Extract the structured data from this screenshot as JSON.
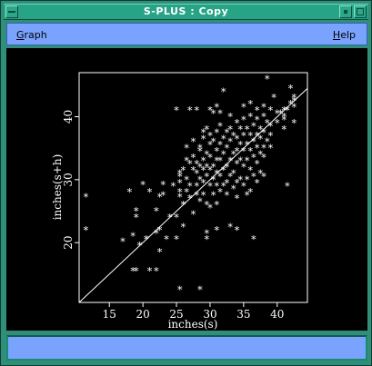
{
  "window": {
    "title": "S-PLUS : Copy"
  },
  "menu": {
    "graph_label": "Graph",
    "graph_underline": "G",
    "graph_rest": "raph",
    "help_label": "Help",
    "help_underline": "H",
    "help_rest": "elp"
  },
  "status": {
    "text": ""
  },
  "chart_data": {
    "type": "scatter",
    "xlabel": "inches(s)",
    "ylabel": "inches(s+h)",
    "xlim": [
      10.5,
      44.5
    ],
    "ylim": [
      10.5,
      47
    ],
    "xticks": [
      15,
      20,
      25,
      30,
      35,
      40
    ],
    "yticks": [
      20,
      30,
      40
    ],
    "marker": "*",
    "reference_line": {
      "from": [
        10.5,
        10.5
      ],
      "to": [
        44.5,
        44.5
      ]
    },
    "points": [
      [
        11.5,
        27.2
      ],
      [
        11.5,
        22.0
      ],
      [
        17.0,
        20.2
      ],
      [
        18.0,
        28.0
      ],
      [
        18.5,
        15.5
      ],
      [
        18.5,
        21.0
      ],
      [
        19.0,
        15.5
      ],
      [
        19.0,
        25.0
      ],
      [
        19.0,
        24.0
      ],
      [
        19.5,
        19.5
      ],
      [
        20.0,
        29.2
      ],
      [
        20.5,
        20.5
      ],
      [
        21.0,
        28.0
      ],
      [
        21.0,
        15.5
      ],
      [
        22.0,
        15.5
      ],
      [
        22.0,
        25.0
      ],
      [
        22.0,
        21.5
      ],
      [
        22.5,
        22.0
      ],
      [
        22.5,
        27.2
      ],
      [
        22.5,
        18.5
      ],
      [
        23.0,
        29.2
      ],
      [
        23.0,
        27.5
      ],
      [
        23.5,
        20.5
      ],
      [
        24.0,
        24.0
      ],
      [
        24.5,
        29.0
      ],
      [
        25.0,
        24.0
      ],
      [
        25.0,
        20.5
      ],
      [
        25.0,
        41.0
      ],
      [
        25.5,
        27.2
      ],
      [
        25.5,
        28.0
      ],
      [
        25.5,
        31.0
      ],
      [
        25.5,
        29.5
      ],
      [
        25.5,
        30.5
      ],
      [
        25.5,
        12.5
      ],
      [
        26.0,
        31.5
      ],
      [
        26.0,
        26.0
      ],
      [
        26.0,
        22.5
      ],
      [
        26.5,
        30.0
      ],
      [
        26.5,
        28.0
      ],
      [
        26.5,
        33.0
      ],
      [
        26.5,
        35.0
      ],
      [
        27.0,
        41.0
      ],
      [
        27.0,
        32.5
      ],
      [
        27.0,
        29.0
      ],
      [
        27.0,
        27.0
      ],
      [
        27.5,
        24.5
      ],
      [
        27.5,
        33.5
      ],
      [
        27.5,
        31.5
      ],
      [
        27.5,
        36.0
      ],
      [
        28.0,
        27.5
      ],
      [
        28.0,
        29.0
      ],
      [
        28.0,
        31.0
      ],
      [
        28.0,
        32.5
      ],
      [
        28.0,
        41.0
      ],
      [
        28.5,
        26.5
      ],
      [
        28.5,
        30.0
      ],
      [
        28.5,
        32.0
      ],
      [
        28.5,
        35.0
      ],
      [
        28.5,
        34.5
      ],
      [
        28.5,
        12.5
      ],
      [
        29.0,
        29.5
      ],
      [
        29.0,
        33.0
      ],
      [
        29.0,
        36.5
      ],
      [
        29.0,
        37.5
      ],
      [
        29.0,
        31.5
      ],
      [
        29.0,
        27.5
      ],
      [
        29.5,
        26.0
      ],
      [
        29.5,
        30.5
      ],
      [
        29.5,
        32.0
      ],
      [
        29.5,
        34.0
      ],
      [
        29.5,
        38.0
      ],
      [
        29.5,
        21.5
      ],
      [
        29.5,
        20.5
      ],
      [
        30.0,
        31.5
      ],
      [
        30.0,
        33.5
      ],
      [
        30.0,
        35.5
      ],
      [
        30.0,
        37.0
      ],
      [
        30.0,
        29.0
      ],
      [
        30.0,
        25.5
      ],
      [
        30.0,
        41.0
      ],
      [
        30.5,
        32.0
      ],
      [
        30.5,
        30.0
      ],
      [
        30.5,
        27.5
      ],
      [
        30.5,
        36.0
      ],
      [
        30.5,
        40.5
      ],
      [
        31.0,
        34.5
      ],
      [
        31.0,
        33.0
      ],
      [
        31.0,
        31.0
      ],
      [
        31.0,
        29.0
      ],
      [
        31.0,
        26.0
      ],
      [
        31.0,
        41.5
      ],
      [
        31.0,
        37.5
      ],
      [
        31.0,
        22.0
      ],
      [
        31.5,
        35.5
      ],
      [
        31.5,
        33.0
      ],
      [
        31.5,
        30.5
      ],
      [
        31.5,
        28.0
      ],
      [
        31.5,
        38.5
      ],
      [
        31.5,
        40.5
      ],
      [
        32.0,
        36.5
      ],
      [
        32.0,
        34.0
      ],
      [
        32.0,
        31.5
      ],
      [
        32.0,
        29.0
      ],
      [
        32.0,
        44.0
      ],
      [
        32.5,
        37.5
      ],
      [
        32.5,
        35.0
      ],
      [
        32.5,
        32.0
      ],
      [
        32.5,
        29.5
      ],
      [
        32.5,
        27.5
      ],
      [
        33.0,
        38.0
      ],
      [
        33.0,
        36.0
      ],
      [
        33.0,
        33.0
      ],
      [
        33.0,
        30.5
      ],
      [
        33.0,
        40.0
      ],
      [
        33.0,
        22.5
      ],
      [
        33.5,
        37.0
      ],
      [
        33.5,
        34.0
      ],
      [
        33.5,
        31.0
      ],
      [
        33.5,
        28.5
      ],
      [
        34.0,
        39.0
      ],
      [
        34.0,
        36.5
      ],
      [
        34.0,
        34.5
      ],
      [
        34.0,
        32.5
      ],
      [
        34.0,
        29.5
      ],
      [
        34.0,
        27.0
      ],
      [
        34.0,
        22.0
      ],
      [
        34.5,
        38.0
      ],
      [
        34.5,
        35.5
      ],
      [
        34.5,
        33.0
      ],
      [
        34.5,
        30.0
      ],
      [
        35.0,
        39.5
      ],
      [
        35.0,
        37.0
      ],
      [
        35.0,
        34.5
      ],
      [
        35.0,
        32.0
      ],
      [
        35.0,
        29.0
      ],
      [
        35.0,
        41.5
      ],
      [
        35.5,
        38.0
      ],
      [
        35.5,
        35.5
      ],
      [
        35.5,
        33.0
      ],
      [
        35.5,
        30.0
      ],
      [
        35.5,
        27.5
      ],
      [
        36.0,
        40.0
      ],
      [
        36.0,
        37.0
      ],
      [
        36.0,
        34.5
      ],
      [
        36.0,
        31.5
      ],
      [
        36.0,
        28.0
      ],
      [
        36.0,
        42.0
      ],
      [
        36.5,
        38.5
      ],
      [
        36.5,
        36.0
      ],
      [
        36.5,
        33.5
      ],
      [
        36.5,
        30.5
      ],
      [
        36.5,
        20.5
      ],
      [
        37.0,
        39.5
      ],
      [
        37.0,
        37.0
      ],
      [
        37.0,
        35.0
      ],
      [
        37.0,
        32.5
      ],
      [
        37.0,
        29.5
      ],
      [
        37.0,
        41.0
      ],
      [
        37.5,
        38.0
      ],
      [
        37.5,
        36.5
      ],
      [
        37.5,
        34.0
      ],
      [
        37.5,
        31.0
      ],
      [
        38.0,
        40.0
      ],
      [
        38.0,
        37.5
      ],
      [
        38.0,
        35.0
      ],
      [
        38.0,
        33.5
      ],
      [
        38.0,
        30.5
      ],
      [
        38.0,
        41.5
      ],
      [
        38.5,
        39.0
      ],
      [
        38.5,
        36.0
      ],
      [
        38.5,
        46.0
      ],
      [
        39.0,
        41.0
      ],
      [
        39.0,
        38.5
      ],
      [
        39.0,
        35.0
      ],
      [
        39.0,
        37.0
      ],
      [
        39.5,
        43.0
      ],
      [
        40.0,
        40.5
      ],
      [
        40.5,
        40.5
      ],
      [
        41.0,
        39.5
      ],
      [
        41.0,
        38.0
      ],
      [
        41.0,
        41.0
      ],
      [
        41.0,
        40.0
      ],
      [
        41.5,
        41.0
      ],
      [
        41.5,
        29.0
      ],
      [
        42.0,
        42.0
      ],
      [
        42.0,
        44.5
      ],
      [
        42.5,
        39.0
      ],
      [
        42.5,
        42.5
      ],
      [
        42.5,
        43.0
      ],
      [
        42.5,
        41.5
      ],
      [
        40.0,
        39.0
      ]
    ]
  }
}
